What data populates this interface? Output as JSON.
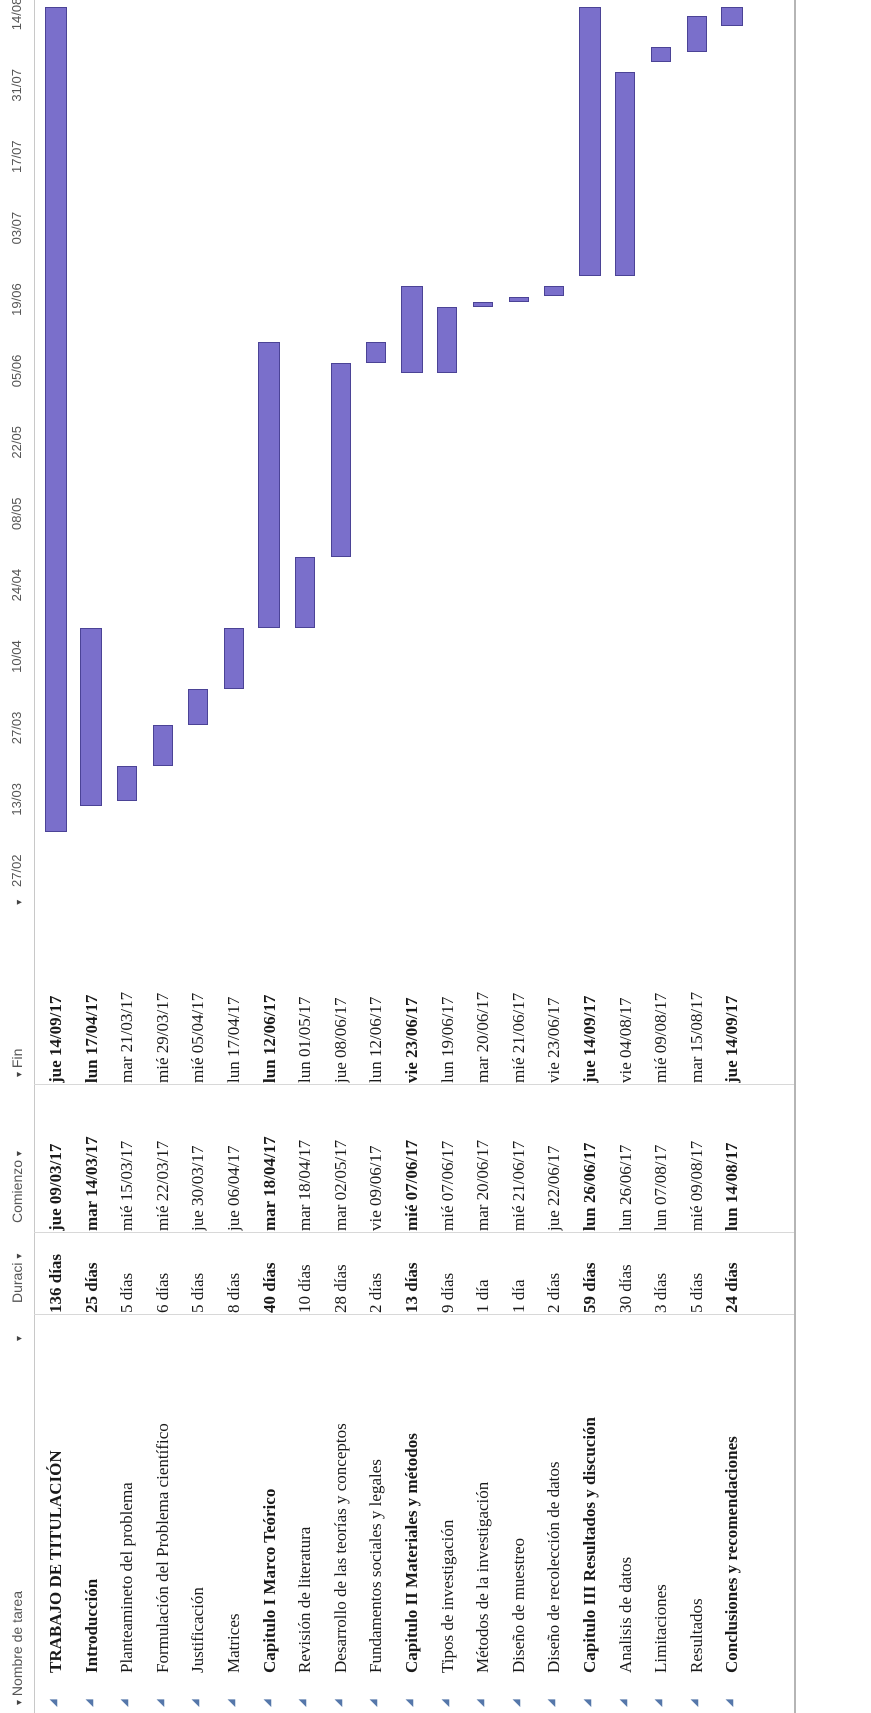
{
  "columns": {
    "name": "Nombre de tarea",
    "duration": "Duraci",
    "start": "Comienzo",
    "end": "Fin"
  },
  "timescale": [
    "27/02",
    "13/03",
    "27/03",
    "10/04",
    "24/04",
    "08/05",
    "22/05",
    "05/06",
    "19/06",
    "03/07",
    "17/07",
    "31/07",
    "14/08"
  ],
  "tasks": [
    {
      "name": "TRABAJO DE TITULACIÓN",
      "duration": "136 días",
      "start": "jue 09/03/17",
      "end": "jue 14/09/17",
      "summary": true,
      "start_iso": "2017-03-09",
      "end_iso": "2017-09-14"
    },
    {
      "name": "Introducción",
      "duration": "25 días",
      "start": "mar 14/03/17",
      "end": "lun 17/04/17",
      "summary": true,
      "start_iso": "2017-03-14",
      "end_iso": "2017-04-17"
    },
    {
      "name": "Planteamineto del problema",
      "duration": "5 días",
      "start": "mié 15/03/17",
      "end": "mar 21/03/17",
      "summary": false,
      "start_iso": "2017-03-15",
      "end_iso": "2017-03-21"
    },
    {
      "name": "Formulación del Problema científico",
      "duration": "6 días",
      "start": "mié 22/03/17",
      "end": "mié 29/03/17",
      "summary": false,
      "start_iso": "2017-03-22",
      "end_iso": "2017-03-29"
    },
    {
      "name": "Justificación",
      "duration": "5 días",
      "start": "jue 30/03/17",
      "end": "mié 05/04/17",
      "summary": false,
      "start_iso": "2017-03-30",
      "end_iso": "2017-04-05"
    },
    {
      "name": "Matrices",
      "duration": "8 días",
      "start": "jue 06/04/17",
      "end": "lun 17/04/17",
      "summary": false,
      "start_iso": "2017-04-06",
      "end_iso": "2017-04-17"
    },
    {
      "name": "Capitulo I Marco Teórico",
      "duration": "40 días",
      "start": "mar 18/04/17",
      "end": "lun 12/06/17",
      "summary": true,
      "start_iso": "2017-04-18",
      "end_iso": "2017-06-12"
    },
    {
      "name": "Revisión de literatura",
      "duration": "10 días",
      "start": "mar 18/04/17",
      "end": "lun 01/05/17",
      "summary": false,
      "start_iso": "2017-04-18",
      "end_iso": "2017-05-01"
    },
    {
      "name": "Desarrollo de las teorías y conceptos",
      "duration": "28 días",
      "start": "mar 02/05/17",
      "end": "jue 08/06/17",
      "summary": false,
      "start_iso": "2017-05-02",
      "end_iso": "2017-06-08"
    },
    {
      "name": "Fundamentos sociales y legales",
      "duration": "2 días",
      "start": "vie 09/06/17",
      "end": "lun 12/06/17",
      "summary": false,
      "start_iso": "2017-06-09",
      "end_iso": "2017-06-12"
    },
    {
      "name": "Capitulo II Materiales y métodos",
      "duration": "13 días",
      "start": "mié 07/06/17",
      "end": "vie 23/06/17",
      "summary": true,
      "start_iso": "2017-06-07",
      "end_iso": "2017-06-23"
    },
    {
      "name": "Tipos de investigación",
      "duration": "9 días",
      "start": "mié 07/06/17",
      "end": "lun 19/06/17",
      "summary": false,
      "start_iso": "2017-06-07",
      "end_iso": "2017-06-19"
    },
    {
      "name": "Métodos de la investigación",
      "duration": "1 día",
      "start": "mar 20/06/17",
      "end": "mar 20/06/17",
      "summary": false,
      "start_iso": "2017-06-20",
      "end_iso": "2017-06-20"
    },
    {
      "name": "Diseño de muestreo",
      "duration": "1 día",
      "start": "mié 21/06/17",
      "end": "mié 21/06/17",
      "summary": false,
      "start_iso": "2017-06-21",
      "end_iso": "2017-06-21"
    },
    {
      "name": "Diseño de recolección de datos",
      "duration": "2 días",
      "start": "jue 22/06/17",
      "end": "vie 23/06/17",
      "summary": false,
      "start_iso": "2017-06-22",
      "end_iso": "2017-06-23"
    },
    {
      "name": "Capitulo III Resultados y discución",
      "duration": "59 días",
      "start": "lun 26/06/17",
      "end": "jue 14/09/17",
      "summary": true,
      "start_iso": "2017-06-26",
      "end_iso": "2017-09-14"
    },
    {
      "name": "Analisis de datos",
      "duration": "30 días",
      "start": "lun 26/06/17",
      "end": "vie 04/08/17",
      "summary": false,
      "start_iso": "2017-06-26",
      "end_iso": "2017-08-04"
    },
    {
      "name": "Limitaciones",
      "duration": "3 días",
      "start": "lun 07/08/17",
      "end": "mié 09/08/17",
      "summary": false,
      "start_iso": "2017-08-07",
      "end_iso": "2017-08-09"
    },
    {
      "name": "Resultados",
      "duration": "5 días",
      "start": "mié 09/08/17",
      "end": "mar 15/08/17",
      "summary": false,
      "start_iso": "2017-08-09",
      "end_iso": "2017-08-15"
    },
    {
      "name": "Conclusiones y recomendaciones",
      "duration": "24 días",
      "start": "lun 14/08/17",
      "end": "jue 14/09/17",
      "summary": true,
      "start_iso": "2017-08-14",
      "end_iso": "2017-09-14"
    }
  ],
  "colors": {
    "bar_fill": "#7a6fcb",
    "bar_border": "#4b4396"
  }
}
